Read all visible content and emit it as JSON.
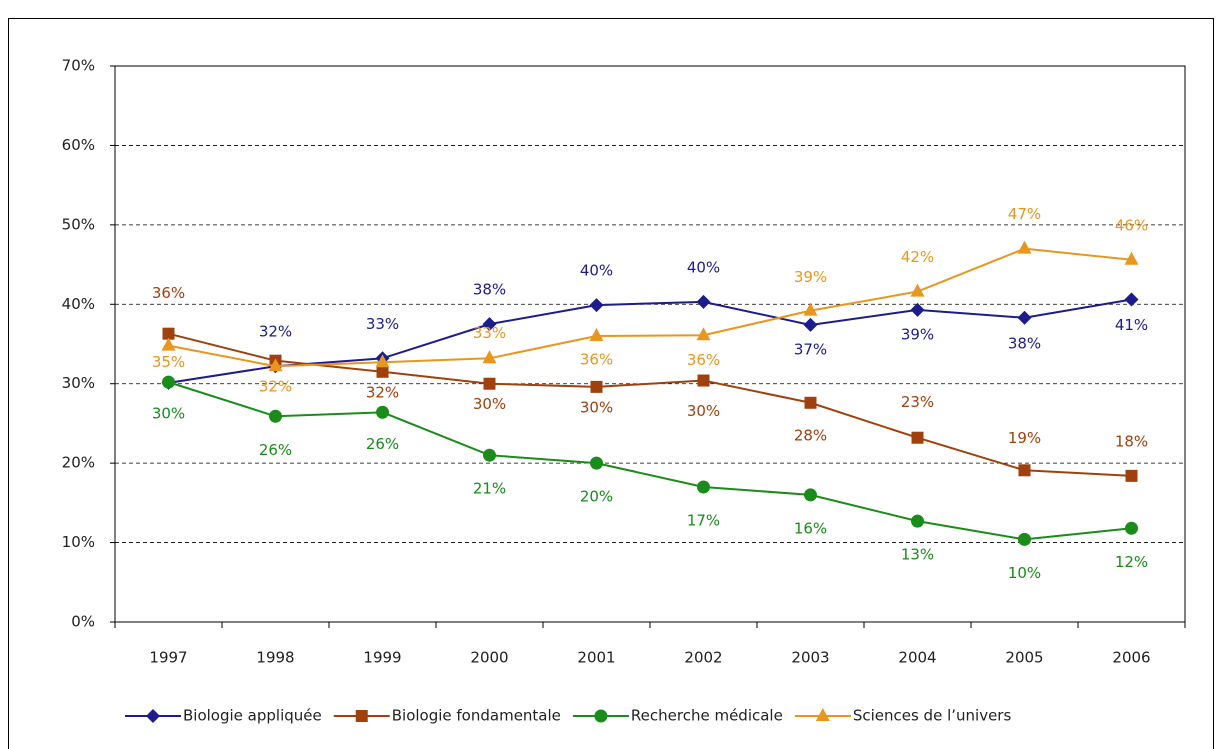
{
  "chart_data": {
    "type": "line",
    "categories": [
      "1997",
      "1998",
      "1999",
      "2000",
      "2001",
      "2002",
      "2003",
      "2004",
      "2005",
      "2006"
    ],
    "ylim": [
      0,
      70
    ],
    "yticks": [
      {
        "value": 0,
        "label": "0%"
      },
      {
        "value": 10,
        "label": "10%"
      },
      {
        "value": 20,
        "label": "20%"
      },
      {
        "value": 30,
        "label": "30%"
      },
      {
        "value": 40,
        "label": "40%"
      },
      {
        "value": 50,
        "label": "50%"
      },
      {
        "value": 60,
        "label": "60%"
      },
      {
        "value": 70,
        "label": "70%"
      }
    ],
    "grid": true,
    "legend": "bottom",
    "series": [
      {
        "name": "Biologie appliquée",
        "color": "#1c1c8c",
        "marker": "diamond",
        "values": [
          30.1,
          32.2,
          33.2,
          37.5,
          39.9,
          40.3,
          37.4,
          39.3,
          38.3,
          40.6
        ],
        "value_labels": [
          null,
          "32%",
          "33%",
          "38%",
          "40%",
          "40%",
          "37%",
          "39%",
          "38%",
          "41%"
        ]
      },
      {
        "name": "Biologie fondamentale",
        "color": "#a0410d",
        "marker": "square",
        "values": [
          36.3,
          32.9,
          31.5,
          30.0,
          29.6,
          30.4,
          27.6,
          23.2,
          19.1,
          18.4
        ],
        "value_labels": [
          "36%",
          null,
          "32%",
          "30%",
          "30%",
          "30%",
          "28%",
          "23%",
          "19%",
          "18%"
        ]
      },
      {
        "name": "Recherche médicale",
        "color": "#1a8c1a",
        "marker": "circle",
        "values": [
          30.2,
          25.9,
          26.4,
          21.0,
          20.0,
          17.0,
          16.0,
          12.7,
          10.4,
          11.8
        ],
        "value_labels": [
          "30%",
          "26%",
          "26%",
          "21%",
          "20%",
          "17%",
          "16%",
          "13%",
          "10%",
          "12%"
        ]
      },
      {
        "name": "Sciences de l’univers",
        "color": "#e8961e",
        "marker": "triangle",
        "values": [
          34.8,
          32.2,
          32.7,
          33.2,
          36.0,
          36.1,
          39.2,
          41.6,
          47.0,
          45.6
        ],
        "value_labels": [
          "35%",
          "32%",
          null,
          "33%",
          "36%",
          "36%",
          "39%",
          "42%",
          "47%",
          "46%"
        ]
      }
    ]
  }
}
